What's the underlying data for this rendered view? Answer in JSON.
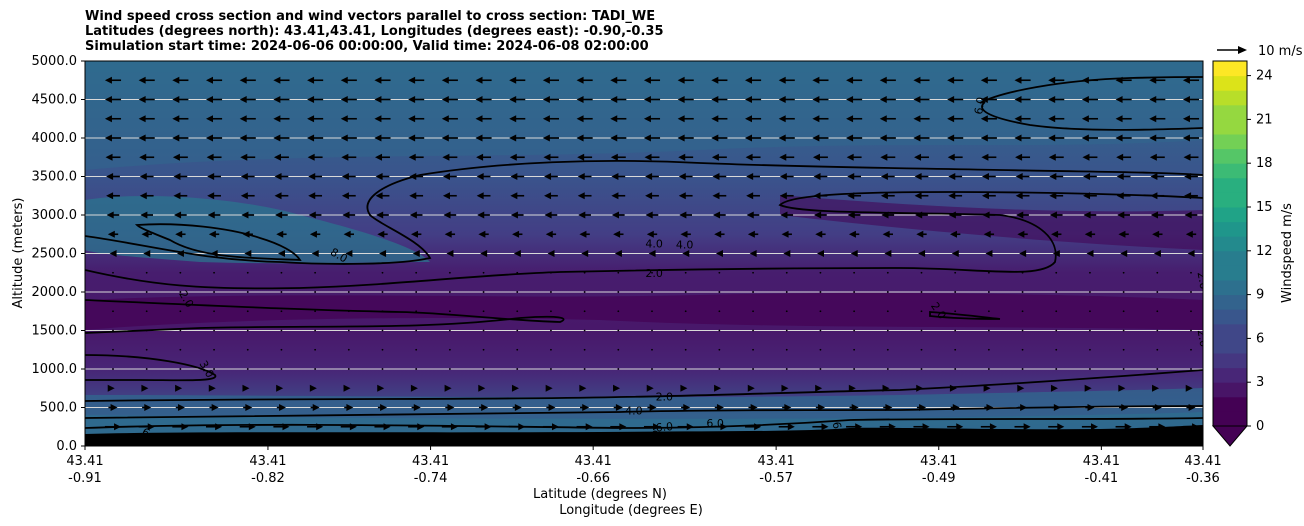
{
  "chart_data": {
    "type": "heatmap",
    "title_lines": [
      "Wind speed cross section and wind vectors parallel to cross section: TADI_WE",
      "Latitudes (degrees north): 43.41,43.41, Longitudes (degrees east): -0.90,-0.35",
      "Simulation start time: 2024-06-06 00:00:00, Valid time: 2024-06-08 02:00:00"
    ],
    "ylabel": "Altitude (meters)",
    "xlabel_lines": [
      "Latitude (degrees N)",
      "Longitude (degrees E)"
    ],
    "ylim": [
      0,
      5000
    ],
    "y_ticks": [
      "0.0",
      "500.0",
      "1000.0",
      "1500.0",
      "2000.0",
      "2500.0",
      "3000.0",
      "3500.0",
      "4000.0",
      "4500.0",
      "5000.0"
    ],
    "x_ticks": [
      {
        "lat": "43.41",
        "lon": "-0.91"
      },
      {
        "lat": "43.41",
        "lon": "-0.82"
      },
      {
        "lat": "43.41",
        "lon": "-0.74"
      },
      {
        "lat": "43.41",
        "lon": "-0.66"
      },
      {
        "lat": "43.41",
        "lon": "-0.57"
      },
      {
        "lat": "43.41",
        "lon": "-0.49"
      },
      {
        "lat": "43.41",
        "lon": "-0.41"
      },
      {
        "lat": "43.41",
        "lon": "-0.36"
      }
    ],
    "lon_range": [
      -0.91,
      -0.36
    ],
    "grid": "horizontal",
    "colorbar": {
      "label": "Windspeed m/s",
      "min": 0,
      "max": 25,
      "step": 1,
      "ticks": [
        "0",
        "3",
        "6",
        "9",
        "12",
        "15",
        "18",
        "21",
        "24"
      ],
      "extend": "min"
    },
    "quiver_key": "10 m/s",
    "wind_profile": [
      {
        "z": 250,
        "u": 7
      },
      {
        "z": 500,
        "u": 4
      },
      {
        "z": 750,
        "u": 1.5
      },
      {
        "z": 1000,
        "u": 0.5
      },
      {
        "z": 1250,
        "u": 0.3
      },
      {
        "z": 1500,
        "u": 0.2
      },
      {
        "z": 1750,
        "u": 0.3
      },
      {
        "z": 2000,
        "u": 0.5
      },
      {
        "z": 2250,
        "u": -1
      },
      {
        "z": 2500,
        "u": -3
      },
      {
        "z": 2750,
        "u": -4.5
      },
      {
        "z": 3000,
        "u": -5.5
      },
      {
        "z": 3250,
        "u": -6
      },
      {
        "z": 3500,
        "u": -6
      },
      {
        "z": 3750,
        "u": -6.5
      },
      {
        "z": 4000,
        "u": -7
      },
      {
        "z": 4250,
        "u": -7
      },
      {
        "z": 4500,
        "u": -7
      },
      {
        "z": 4750,
        "u": -7
      }
    ],
    "contour_labels": [
      {
        "text": "8.0",
        "lon": -0.785,
        "z": 2480,
        "rot": 30
      },
      {
        "text": "4.0",
        "lon": -0.63,
        "z": 2630,
        "rot": 0
      },
      {
        "text": "4.0",
        "lon": -0.615,
        "z": 2620,
        "rot": 0
      },
      {
        "text": "2.0",
        "lon": -0.63,
        "z": 2250,
        "rot": 0
      },
      {
        "text": "2.0",
        "lon": -0.86,
        "z": 1910,
        "rot": 60
      },
      {
        "text": "2.0",
        "lon": -0.49,
        "z": 1760,
        "rot": 55
      },
      {
        "text": "2.0",
        "lon": -0.36,
        "z": 2150,
        "rot": 80
      },
      {
        "text": "2.0",
        "lon": -0.36,
        "z": 1400,
        "rot": 80
      },
      {
        "text": "3.0",
        "lon": -0.85,
        "z": 1000,
        "rot": 60
      },
      {
        "text": "6.0",
        "lon": -0.47,
        "z": 4420,
        "rot": -80
      },
      {
        "text": "2.0",
        "lon": -0.625,
        "z": 640,
        "rot": 0
      },
      {
        "text": "4.0",
        "lon": -0.64,
        "z": 460,
        "rot": 0
      },
      {
        "text": "6.0",
        "lon": -0.625,
        "z": 250,
        "rot": -5
      },
      {
        "text": "6.0",
        "lon": -0.6,
        "z": 300,
        "rot": 0
      },
      {
        "text": "6",
        "lon": -0.88,
        "z": 180,
        "rot": 30
      },
      {
        "text": "6",
        "lon": -0.63,
        "z": 150,
        "rot": 20
      },
      {
        "text": "6",
        "lon": -0.54,
        "z": 270,
        "rot": 80
      }
    ]
  }
}
